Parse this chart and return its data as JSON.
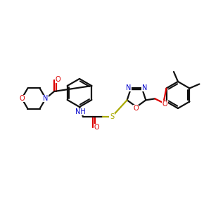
{
  "bg": "#ffffff",
  "bc": "#111111",
  "nc": "#0000cc",
  "oc": "#dd0000",
  "sc": "#aaaa00",
  "lw": 1.6,
  "fs": 7.0,
  "xlim": [
    0,
    300
  ],
  "ylim": [
    60,
    260
  ]
}
